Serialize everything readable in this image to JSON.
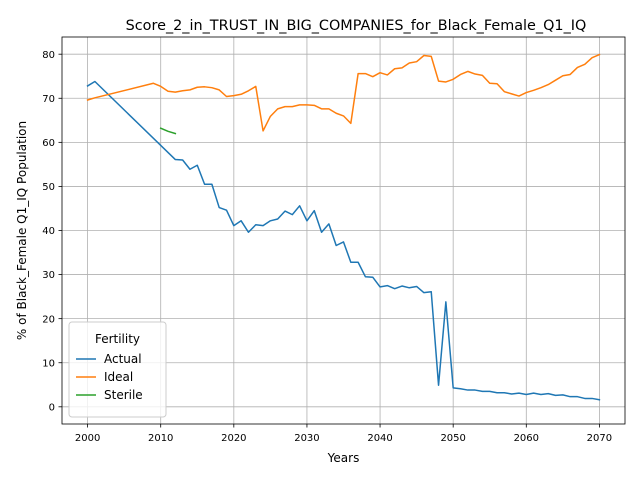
{
  "chart_data": {
    "type": "line",
    "title": "Score_2_in_TRUST_IN_BIG_COMPANIES_for_Black_Female_Q1_IQ",
    "xlabel": "Years",
    "ylabel": "% of Black_Female Q1_IQ Population",
    "xlim": [
      1996.5,
      2073.5
    ],
    "ylim": [
      -3.9,
      83.9
    ],
    "xticks": [
      2000,
      2010,
      2020,
      2030,
      2040,
      2050,
      2060,
      2070
    ],
    "yticks": [
      0,
      10,
      20,
      30,
      40,
      50,
      60,
      70,
      80
    ],
    "grid": true,
    "legend": {
      "title": "Fertility",
      "position": "lower-left"
    },
    "series": [
      {
        "name": "Actual",
        "color": "#1f77b4",
        "x": [
          2000,
          2001,
          2012,
          2013,
          2014,
          2015,
          2016,
          2017,
          2018,
          2019,
          2020,
          2021,
          2022,
          2023,
          2024,
          2025,
          2026,
          2027,
          2028,
          2029,
          2030,
          2031,
          2032,
          2033,
          2034,
          2035,
          2036,
          2037,
          2038,
          2039,
          2040,
          2041,
          2042,
          2043,
          2044,
          2045,
          2046,
          2047,
          2048,
          2049,
          2050,
          2051,
          2052,
          2053,
          2054,
          2055,
          2056,
          2057,
          2058,
          2059,
          2060,
          2061,
          2062,
          2063,
          2064,
          2065,
          2066,
          2067,
          2068,
          2069,
          2070
        ],
        "y": [
          72.8,
          73.8,
          56.1,
          56.0,
          53.9,
          54.8,
          50.5,
          50.5,
          45.2,
          44.6,
          41.1,
          42.2,
          39.6,
          41.3,
          41.1,
          42.2,
          42.6,
          44.4,
          43.6,
          45.6,
          42.2,
          44.5,
          39.6,
          41.5,
          36.6,
          37.4,
          32.8,
          32.8,
          29.5,
          29.4,
          27.2,
          27.5,
          26.8,
          27.4,
          27.0,
          27.3,
          25.9,
          26.1,
          4.9,
          23.8,
          4.3,
          4.1,
          3.8,
          3.8,
          3.5,
          3.5,
          3.2,
          3.2,
          2.9,
          3.1,
          2.8,
          3.1,
          2.8,
          3.0,
          2.6,
          2.7,
          2.3,
          2.3,
          1.9,
          1.9,
          1.6
        ]
      },
      {
        "name": "Ideal",
        "color": "#ff7f0e",
        "x": [
          2000,
          2001,
          2009,
          2010,
          2011,
          2012,
          2013,
          2014,
          2015,
          2016,
          2017,
          2018,
          2019,
          2020,
          2021,
          2022,
          2023,
          2024,
          2025,
          2026,
          2027,
          2028,
          2029,
          2030,
          2031,
          2032,
          2033,
          2034,
          2035,
          2036,
          2037,
          2038,
          2039,
          2040,
          2041,
          2042,
          2043,
          2044,
          2045,
          2046,
          2047,
          2048,
          2049,
          2050,
          2051,
          2052,
          2053,
          2054,
          2055,
          2056,
          2057,
          2058,
          2059,
          2060,
          2061,
          2062,
          2063,
          2064,
          2065,
          2066,
          2067,
          2068,
          2069,
          2070
        ],
        "y": [
          69.6,
          70.1,
          73.4,
          72.7,
          71.6,
          71.4,
          71.7,
          71.9,
          72.5,
          72.6,
          72.4,
          71.9,
          70.4,
          70.6,
          70.9,
          71.7,
          72.7,
          62.6,
          65.9,
          67.6,
          68.1,
          68.1,
          68.5,
          68.5,
          68.4,
          67.6,
          67.6,
          66.6,
          66.0,
          64.3,
          75.6,
          75.6,
          74.9,
          75.8,
          75.3,
          76.7,
          76.9,
          78.0,
          78.3,
          79.7,
          79.5,
          73.9,
          73.7,
          74.3,
          75.4,
          76.1,
          75.5,
          75.2,
          73.4,
          73.3,
          71.5,
          71.0,
          70.5,
          71.3,
          71.8,
          72.4,
          73.1,
          74.1,
          75.1,
          75.4,
          77.0,
          77.7,
          79.2,
          79.9
        ]
      },
      {
        "name": "Sterile",
        "color": "#2ca02c",
        "x": [
          2010,
          2011,
          2012
        ],
        "y": [
          63.2,
          62.5,
          62.0
        ]
      }
    ]
  }
}
